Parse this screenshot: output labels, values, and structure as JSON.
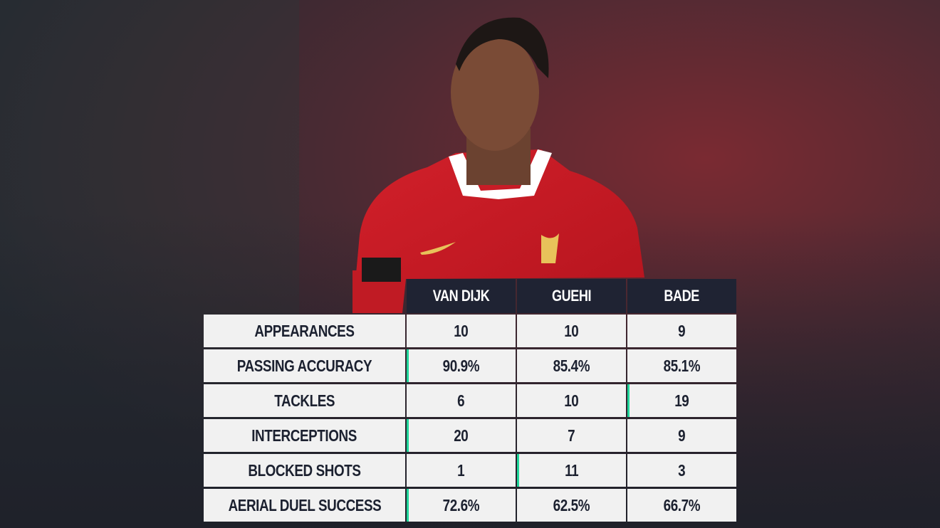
{
  "table": {
    "columns": [
      "VAN DIJK",
      "GUEHI",
      "BADE"
    ],
    "rows": [
      {
        "label": "APPEARANCES",
        "cells": [
          "10",
          "10",
          "9"
        ],
        "highlight": null
      },
      {
        "label": "PASSING ACCURACY",
        "cells": [
          "90.9%",
          "85.4%",
          "85.1%"
        ],
        "highlight": 0
      },
      {
        "label": "TACKLES",
        "cells": [
          "6",
          "10",
          "19"
        ],
        "highlight": 2
      },
      {
        "label": "INTERCEPTIONS",
        "cells": [
          "20",
          "7",
          "9"
        ],
        "highlight": 0
      },
      {
        "label": "BLOCKED SHOTS",
        "cells": [
          "1",
          "11",
          "3"
        ],
        "highlight": 1
      },
      {
        "label": "AERIAL DUEL SUCCESS",
        "cells": [
          "72.6%",
          "62.5%",
          "66.7%"
        ],
        "highlight": 0
      }
    ],
    "highlight_color": "#1fd69a"
  }
}
